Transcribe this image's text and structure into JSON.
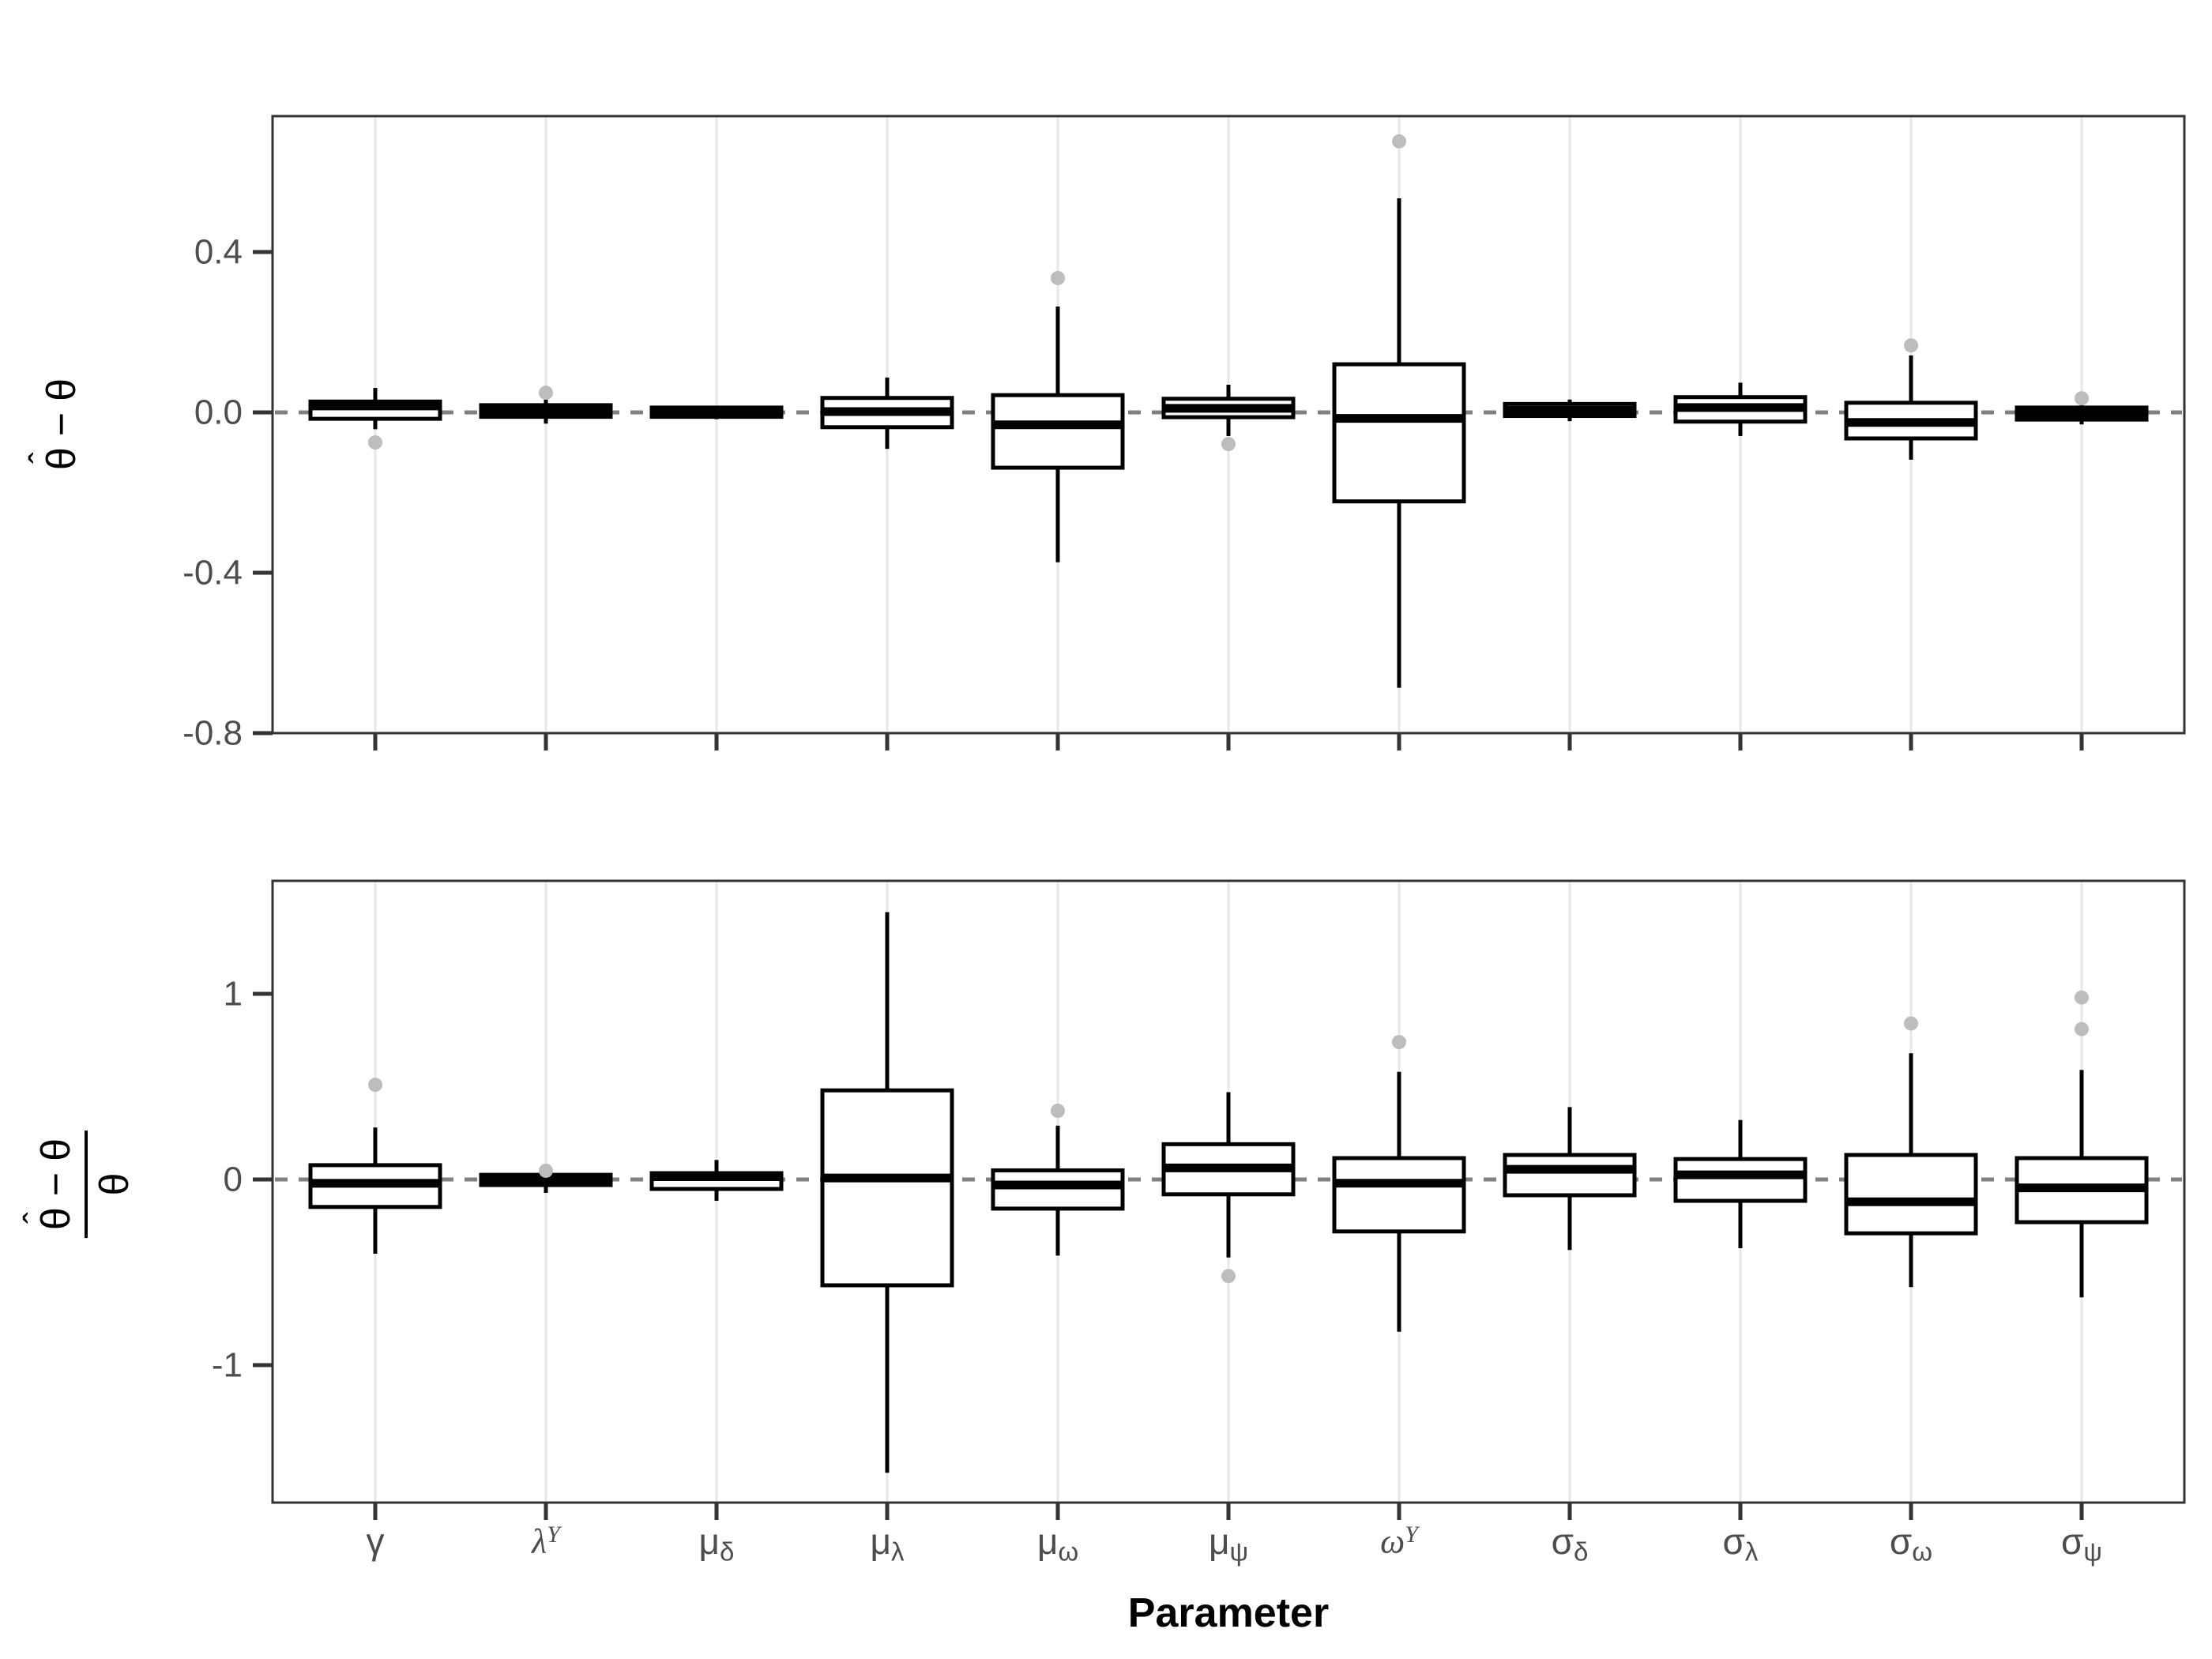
{
  "figure": {
    "xlabel": "Parameter",
    "sym_theta": "θ",
    "sym_hat": "ˆ",
    "sym_minus": "−",
    "colors": {
      "box_stroke": "#000000",
      "box_fill": "#ffffff",
      "outlier": "#bdbdbd",
      "dashed_zero_line": "#808080",
      "gridline": "#e8e8e8",
      "panel_border": "#333333",
      "axis_text": "#4d4d4d",
      "axis_title": "#000000"
    }
  },
  "category_labels": [
    {
      "key": "gamma",
      "base": "γ",
      "variant": "sans"
    },
    {
      "key": "lambda-Y",
      "base": "λ",
      "sup": "Y",
      "variant": "serif-italic"
    },
    {
      "key": "mu-delta",
      "base": "μ",
      "sub": "δ",
      "variant": "sans"
    },
    {
      "key": "mu-lambda",
      "base": "μ",
      "sub": "λ",
      "variant": "sans"
    },
    {
      "key": "mu-omega",
      "base": "μ",
      "sub": "ω",
      "variant": "sans"
    },
    {
      "key": "mu-psi",
      "base": "μ",
      "sub": "ψ",
      "variant": "sans"
    },
    {
      "key": "omega-Y",
      "base": "ω",
      "sup": "Y",
      "variant": "serif-italic"
    },
    {
      "key": "sigma-delta",
      "base": "σ",
      "sub": "δ",
      "variant": "sans"
    },
    {
      "key": "sigma-lambda",
      "base": "σ",
      "sub": "λ",
      "variant": "sans"
    },
    {
      "key": "sigma-omega",
      "base": "σ",
      "sub": "ω",
      "variant": "sans"
    },
    {
      "key": "sigma-psi",
      "base": "σ",
      "sub": "ψ",
      "variant": "sans"
    }
  ],
  "chart_data": [
    {
      "type": "boxplot",
      "panel": "top",
      "ylabel": "θ̂ − θ",
      "xlabel": "Parameter",
      "ylim": [
        -0.8,
        0.74
      ],
      "yticks": [
        0.4,
        0.0,
        -0.4,
        -0.8
      ],
      "ytick_labels": [
        "0.4",
        "0.0",
        "-0.4",
        "-0.8"
      ],
      "zero_reference_line": 0,
      "grid": "vertical-only",
      "categories": [
        "gamma",
        "lambda-Y",
        "mu-delta",
        "mu-lambda",
        "mu-omega",
        "mu-psi",
        "omega-Y",
        "sigma-delta",
        "sigma-lambda",
        "sigma-omega",
        "sigma-psi"
      ],
      "series": [
        {
          "whisker_low": -0.042,
          "q1": -0.016,
          "median": 0.016,
          "q3": 0.027,
          "whisker_high": 0.061,
          "outliers": [
            -0.075
          ]
        },
        {
          "whisker_low": -0.028,
          "q1": -0.011,
          "median": 0.004,
          "q3": 0.018,
          "whisker_high": 0.038,
          "outliers": [
            0.049
          ]
        },
        {
          "whisker_low": -0.017,
          "q1": -0.011,
          "median": 0.001,
          "q3": 0.012,
          "whisker_high": 0.016,
          "outliers": []
        },
        {
          "whisker_low": -0.091,
          "q1": -0.037,
          "median": 0.002,
          "q3": 0.036,
          "whisker_high": 0.087,
          "outliers": []
        },
        {
          "whisker_low": -0.374,
          "q1": -0.138,
          "median": -0.031,
          "q3": 0.043,
          "whisker_high": 0.264,
          "outliers": [
            0.335
          ]
        },
        {
          "whisker_low": -0.059,
          "q1": -0.012,
          "median": 0.01,
          "q3": 0.034,
          "whisker_high": 0.069,
          "outliers": [
            -0.079
          ]
        },
        {
          "whisker_low": -0.687,
          "q1": -0.222,
          "median": -0.015,
          "q3": 0.12,
          "whisker_high": 0.534,
          "outliers": [
            0.676
          ]
        },
        {
          "whisker_low": -0.022,
          "q1": -0.009,
          "median": 0.005,
          "q3": 0.021,
          "whisker_high": 0.032,
          "outliers": []
        },
        {
          "whisker_low": -0.059,
          "q1": -0.023,
          "median": 0.012,
          "q3": 0.038,
          "whisker_high": 0.074,
          "outliers": []
        },
        {
          "whisker_low": -0.118,
          "q1": -0.065,
          "median": -0.025,
          "q3": 0.024,
          "whisker_high": 0.142,
          "outliers": [
            0.167
          ]
        },
        {
          "whisker_low": -0.03,
          "q1": -0.018,
          "median": -0.003,
          "q3": 0.012,
          "whisker_high": 0.018,
          "outliers": [
            0.035
          ]
        }
      ]
    },
    {
      "type": "boxplot",
      "panel": "bottom",
      "ylabel": "(θ̂ − θ) / θ",
      "xlabel": "Parameter",
      "ylim": [
        -1.74,
        1.61
      ],
      "yticks": [
        1,
        0,
        -1
      ],
      "ytick_labels": [
        "1",
        "0",
        "-1"
      ],
      "zero_reference_line": 0,
      "grid": "vertical-only",
      "categories": [
        "gamma",
        "lambda-Y",
        "mu-delta",
        "mu-lambda",
        "mu-omega",
        "mu-psi",
        "omega-Y",
        "sigma-delta",
        "sigma-lambda",
        "sigma-omega",
        "sigma-psi"
      ],
      "series": [
        {
          "whisker_low": -0.4,
          "q1": -0.148,
          "median": -0.021,
          "q3": 0.077,
          "whisker_high": 0.28,
          "outliers": [
            0.51
          ]
        },
        {
          "whisker_low": -0.072,
          "q1": -0.03,
          "median": -0.002,
          "q3": 0.025,
          "whisker_high": 0.068,
          "outliers": [
            0.047
          ]
        },
        {
          "whisker_low": -0.115,
          "q1": -0.051,
          "median": 0.015,
          "q3": 0.034,
          "whisker_high": 0.105,
          "outliers": []
        },
        {
          "whisker_low": -1.58,
          "q1": -0.57,
          "median": 0.008,
          "q3": 0.48,
          "whisker_high": 1.44,
          "outliers": []
        },
        {
          "whisker_low": -0.41,
          "q1": -0.157,
          "median": -0.03,
          "q3": 0.049,
          "whisker_high": 0.29,
          "outliers": [
            0.37
          ]
        },
        {
          "whisker_low": -0.42,
          "q1": -0.08,
          "median": 0.062,
          "q3": 0.19,
          "whisker_high": 0.47,
          "outliers": [
            -0.52
          ]
        },
        {
          "whisker_low": -0.82,
          "q1": -0.28,
          "median": -0.02,
          "q3": 0.115,
          "whisker_high": 0.58,
          "outliers": [
            0.74
          ]
        },
        {
          "whisker_low": -0.38,
          "q1": -0.085,
          "median": 0.055,
          "q3": 0.132,
          "whisker_high": 0.39,
          "outliers": []
        },
        {
          "whisker_low": -0.37,
          "q1": -0.115,
          "median": 0.025,
          "q3": 0.11,
          "whisker_high": 0.32,
          "outliers": []
        },
        {
          "whisker_low": -0.58,
          "q1": -0.29,
          "median": -0.12,
          "q3": 0.132,
          "whisker_high": 0.68,
          "outliers": [
            0.84
          ]
        },
        {
          "whisker_low": -0.635,
          "q1": -0.23,
          "median": -0.045,
          "q3": 0.115,
          "whisker_high": 0.59,
          "outliers": [
            0.81,
            0.98
          ]
        }
      ]
    }
  ]
}
